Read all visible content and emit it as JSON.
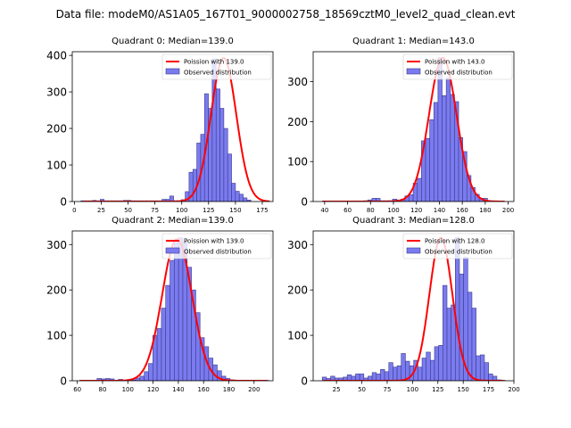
{
  "figure": {
    "suptitle": "Data file: modeM0/AS1A05_167T01_9000002758_18569cztM0_level2_quad_clean.evt"
  },
  "chart_data": [
    {
      "type": "bar",
      "title": "Quadrant 0: Median=139.0",
      "legend": [
        "Poission with 139.0",
        "Observed distribution"
      ],
      "legend_position": "top-right",
      "xlim": [
        -2,
        185
      ],
      "ylim": [
        0,
        410
      ],
      "xticks": [
        0,
        25,
        50,
        75,
        100,
        125,
        150,
        175
      ],
      "yticks": [
        0,
        100,
        200,
        300,
        400
      ],
      "bin_start": 6,
      "bin_width": 3.6,
      "counts": [
        2,
        2,
        2,
        3,
        2,
        6,
        2,
        2,
        2,
        2,
        2,
        3,
        3,
        2,
        2,
        2,
        2,
        2,
        2,
        2,
        2,
        6,
        6,
        15,
        2,
        2,
        5,
        27,
        80,
        88,
        160,
        184,
        295,
        255,
        390,
        308,
        255,
        200,
        130,
        50,
        28,
        20,
        10,
        4
      ],
      "poisson_mean": 139.0,
      "poisson_peak": 393,
      "curve_range": [
        8,
        182
      ]
    },
    {
      "type": "bar",
      "title": "Quadrant 1: Median=143.0",
      "legend": [
        "Poission with 143.0",
        "Observed distribution"
      ],
      "legend_position": "top-right",
      "xlim": [
        30,
        205
      ],
      "ylim": [
        0,
        375
      ],
      "xticks": [
        40,
        60,
        80,
        100,
        120,
        140,
        160,
        180,
        200
      ],
      "yticks": [
        0,
        100,
        200,
        300
      ],
      "bin_start": 38,
      "bin_width": 3.6,
      "counts": [
        1,
        1,
        1,
        1,
        1,
        1,
        1,
        1,
        1,
        1,
        2,
        4,
        8,
        8,
        2,
        2,
        2,
        6,
        4,
        6,
        14,
        17,
        46,
        58,
        152,
        158,
        205,
        248,
        360,
        265,
        310,
        268,
        250,
        160,
        125,
        65,
        35,
        18,
        8,
        8,
        2,
        1,
        1,
        1
      ],
      "poisson_mean": 143.0,
      "poisson_peak": 360,
      "curve_range": [
        38,
        197
      ]
    },
    {
      "type": "bar",
      "title": "Quadrant 2: Median=139.0",
      "legend": [
        "Poission with 139.0",
        "Observed distribution"
      ],
      "legend_position": "top-right",
      "xlim": [
        56,
        215
      ],
      "ylim": [
        0,
        330
      ],
      "xticks": [
        60,
        80,
        100,
        120,
        140,
        160,
        180,
        200
      ],
      "yticks": [
        0,
        100,
        200,
        300
      ],
      "bin_start": 62,
      "bin_width": 3.4,
      "counts": [
        1,
        1,
        1,
        1,
        5,
        4,
        5,
        4,
        1,
        3,
        1,
        2,
        2,
        6,
        10,
        20,
        38,
        100,
        115,
        160,
        210,
        265,
        310,
        315,
        305,
        250,
        200,
        150,
        95,
        75,
        50,
        35,
        22,
        10,
        5,
        2,
        1,
        1,
        1,
        1,
        1,
        1,
        1,
        1
      ],
      "poisson_mean": 139.0,
      "poisson_peak": 312,
      "curve_range": [
        62,
        210
      ]
    },
    {
      "type": "bar",
      "title": "Quadrant 3: Median=128.0",
      "legend": [
        "Poission with 128.0",
        "Observed distribution"
      ],
      "legend_position": "top-right",
      "xlim": [
        2,
        200
      ],
      "ylim": [
        0,
        330
      ],
      "xticks": [
        25,
        50,
        75,
        100,
        125,
        150,
        175,
        200
      ],
      "yticks": [
        0,
        100,
        200,
        300
      ],
      "bin_start": 11,
      "bin_width": 4.1,
      "counts": [
        8,
        5,
        10,
        6,
        6,
        8,
        13,
        10,
        15,
        15,
        6,
        10,
        18,
        15,
        25,
        20,
        40,
        30,
        33,
        60,
        43,
        33,
        45,
        30,
        50,
        63,
        45,
        75,
        78,
        210,
        160,
        167,
        315,
        235,
        272,
        195,
        160,
        55,
        57,
        40,
        15,
        10,
        2,
        1
      ],
      "poisson_mean": 128.0,
      "poisson_peak": 315,
      "curve_range": [
        12,
        190
      ]
    }
  ]
}
